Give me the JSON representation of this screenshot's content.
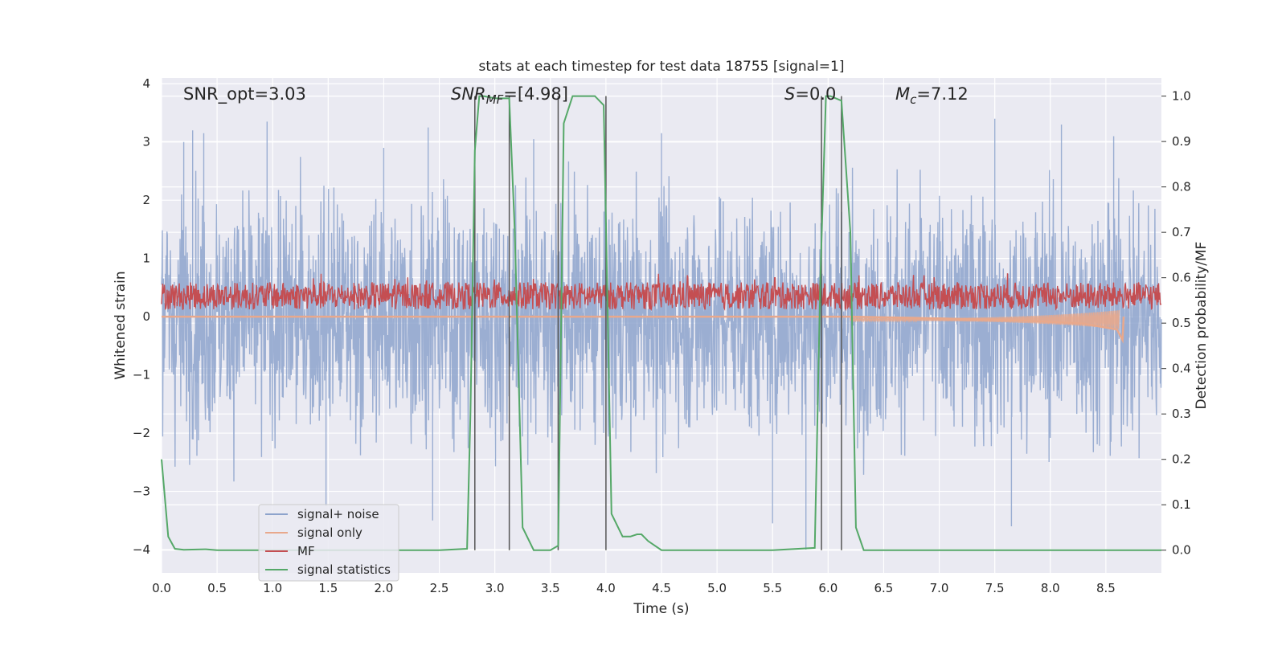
{
  "chart_data": {
    "type": "line",
    "title": "stats at each timestep for test data 18755 [signal=1]",
    "xlabel": "Time (s)",
    "ylabel": "Whitened strain",
    "ylabel_right": "Detection probability/MF",
    "xlim": [
      0.0,
      9.0
    ],
    "ylim": [
      -4.4,
      4.1
    ],
    "ylim_right": [
      -0.05,
      1.04
    ],
    "xticks": [
      "0.0",
      "0.5",
      "1.0",
      "1.5",
      "2.0",
      "2.5",
      "3.0",
      "3.5",
      "4.0",
      "4.5",
      "5.0",
      "5.5",
      "6.0",
      "6.5",
      "7.0",
      "7.5",
      "8.0",
      "8.5"
    ],
    "yticks": [
      "4",
      "3",
      "2",
      "1",
      "0",
      "−1",
      "−2",
      "−3",
      "−4"
    ],
    "yticks_right": [
      "1.0",
      "0.9",
      "0.8",
      "0.7",
      "0.6",
      "0.5",
      "0.4",
      "0.3",
      "0.2",
      "0.1",
      "0.0"
    ],
    "annotations": {
      "snr_opt": "SNR_opt=3.03",
      "snr_mf_sym": "SNR",
      "snr_mf_sub": "MF",
      "snr_mf_val": "=[4.98]",
      "s_sym": "S",
      "s_val": "=0.0",
      "mc_sym": "M",
      "mc_sub": "c",
      "mc_val": "=7.12"
    },
    "legend": {
      "position": "lower-left",
      "entries": [
        {
          "label": "signal+ noise",
          "color": "#8da3cc"
        },
        {
          "label": "signal only",
          "color": "#e8a88c"
        },
        {
          "label": "MF",
          "color": "#c44e52"
        },
        {
          "label": "signal statistics",
          "color": "#55a868"
        }
      ]
    },
    "detection_lines_x": [
      2.82,
      3.13,
      3.57,
      4.0,
      5.94,
      6.12
    ],
    "signal_statistics": {
      "x": [
        0.0,
        0.06,
        0.12,
        0.2,
        0.4,
        0.5,
        1.0,
        2.0,
        2.5,
        2.75,
        2.78,
        2.82,
        2.86,
        2.9,
        3.0,
        3.13,
        3.18,
        3.25,
        3.35,
        3.5,
        3.57,
        3.62,
        3.7,
        3.9,
        3.98,
        4.05,
        4.15,
        4.22,
        4.28,
        4.32,
        4.38,
        4.5,
        4.6,
        5.0,
        5.5,
        5.88,
        5.93,
        5.98,
        6.02,
        6.12,
        6.2,
        6.25,
        6.32,
        6.5,
        7.0,
        9.0
      ],
      "y": [
        0.2,
        0.03,
        0.003,
        0.001,
        0.002,
        0.0,
        0.0,
        0.0,
        0.0,
        0.003,
        0.3,
        0.88,
        1.0,
        1.0,
        0.995,
        0.995,
        0.7,
        0.05,
        0.0,
        0.0,
        0.01,
        0.94,
        1.0,
        1.0,
        0.98,
        0.08,
        0.03,
        0.03,
        0.035,
        0.035,
        0.02,
        0.0,
        0.0,
        0.0,
        0.0,
        0.005,
        0.6,
        1.0,
        1.0,
        0.99,
        0.7,
        0.05,
        0.0,
        0.0,
        0.0,
        0.0
      ]
    },
    "signal_plus_noise": {
      "description_stats": {
        "sigma": 1.0,
        "min": -4.0,
        "max": 3.55
      },
      "spikes": [
        {
          "x": 0.2,
          "y": 3.0
        },
        {
          "x": 0.28,
          "y": 3.2
        },
        {
          "x": 0.38,
          "y": 3.15
        },
        {
          "x": 0.95,
          "y": 3.35
        },
        {
          "x": 1.48,
          "y": -3.25
        },
        {
          "x": 2.0,
          "y": 2.9
        },
        {
          "x": 2.4,
          "y": 3.25
        },
        {
          "x": 2.44,
          "y": -3.5
        },
        {
          "x": 3.35,
          "y": 3.05
        },
        {
          "x": 4.5,
          "y": 3.15
        },
        {
          "x": 5.5,
          "y": -3.55
        },
        {
          "x": 5.8,
          "y": -4.0
        },
        {
          "x": 7.5,
          "y": 3.4
        },
        {
          "x": 7.65,
          "y": -3.6
        },
        {
          "x": 8.1,
          "y": 3.3
        },
        {
          "x": 8.57,
          "y": 3.1
        }
      ]
    },
    "signal_only": {
      "x": [
        0.0,
        6.2,
        7.0,
        7.8,
        8.3,
        8.6,
        8.65,
        8.66
      ],
      "y": [
        0.0,
        0.0,
        -0.03,
        -0.07,
        -0.12,
        -0.22,
        -0.4,
        0.0
      ]
    },
    "mf": {
      "baseline": 0.56,
      "amplitude": 0.03,
      "peak_x": 5.52,
      "peak_y": 0.6
    }
  }
}
